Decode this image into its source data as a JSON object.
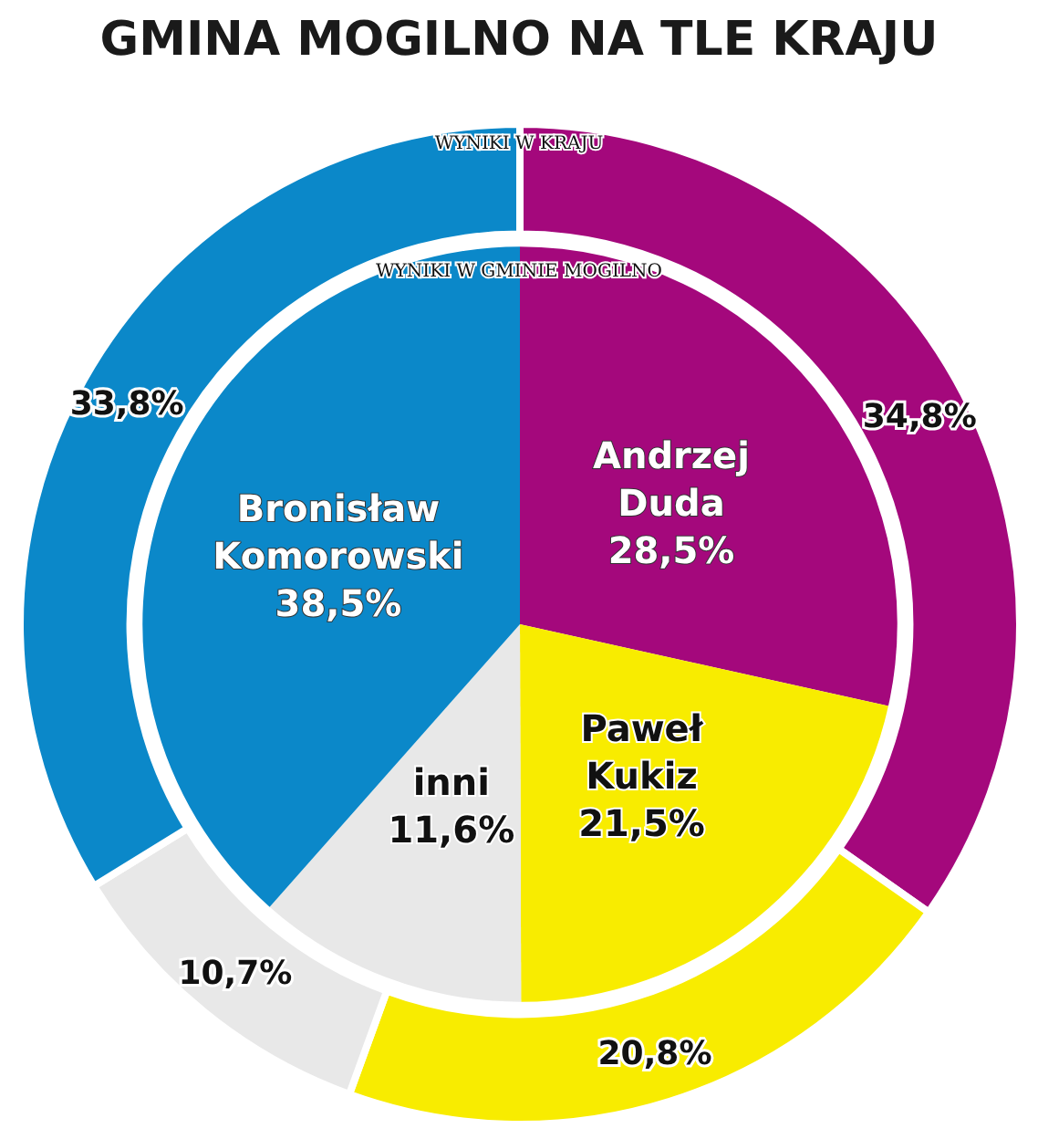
{
  "chart_data": {
    "type": "donut",
    "title": "GMINA MOGILNO NA TLE KRAJU",
    "categories": [
      "Andrzej Duda",
      "Paweł Kukiz",
      "inni",
      "Bronisław Komorowski"
    ],
    "colors": [
      "#a4087c",
      "#f8ec00",
      "#e8e8e8",
      "#0b88c9"
    ],
    "series": [
      {
        "name": "WYNIKI W KRAJU",
        "values": [
          34.8,
          20.8,
          10.7,
          33.8
        ],
        "value_labels": [
          "34,8%",
          "20,8%",
          "10,7%",
          "33,8%"
        ]
      },
      {
        "name": "WYNIKI W GMINIE MOGILNO",
        "type": "pie",
        "values": [
          28.5,
          21.5,
          11.6,
          38.5
        ],
        "value_labels": [
          "28,5%",
          "21,5%",
          "11,6%",
          "38,5%"
        ]
      }
    ]
  }
}
